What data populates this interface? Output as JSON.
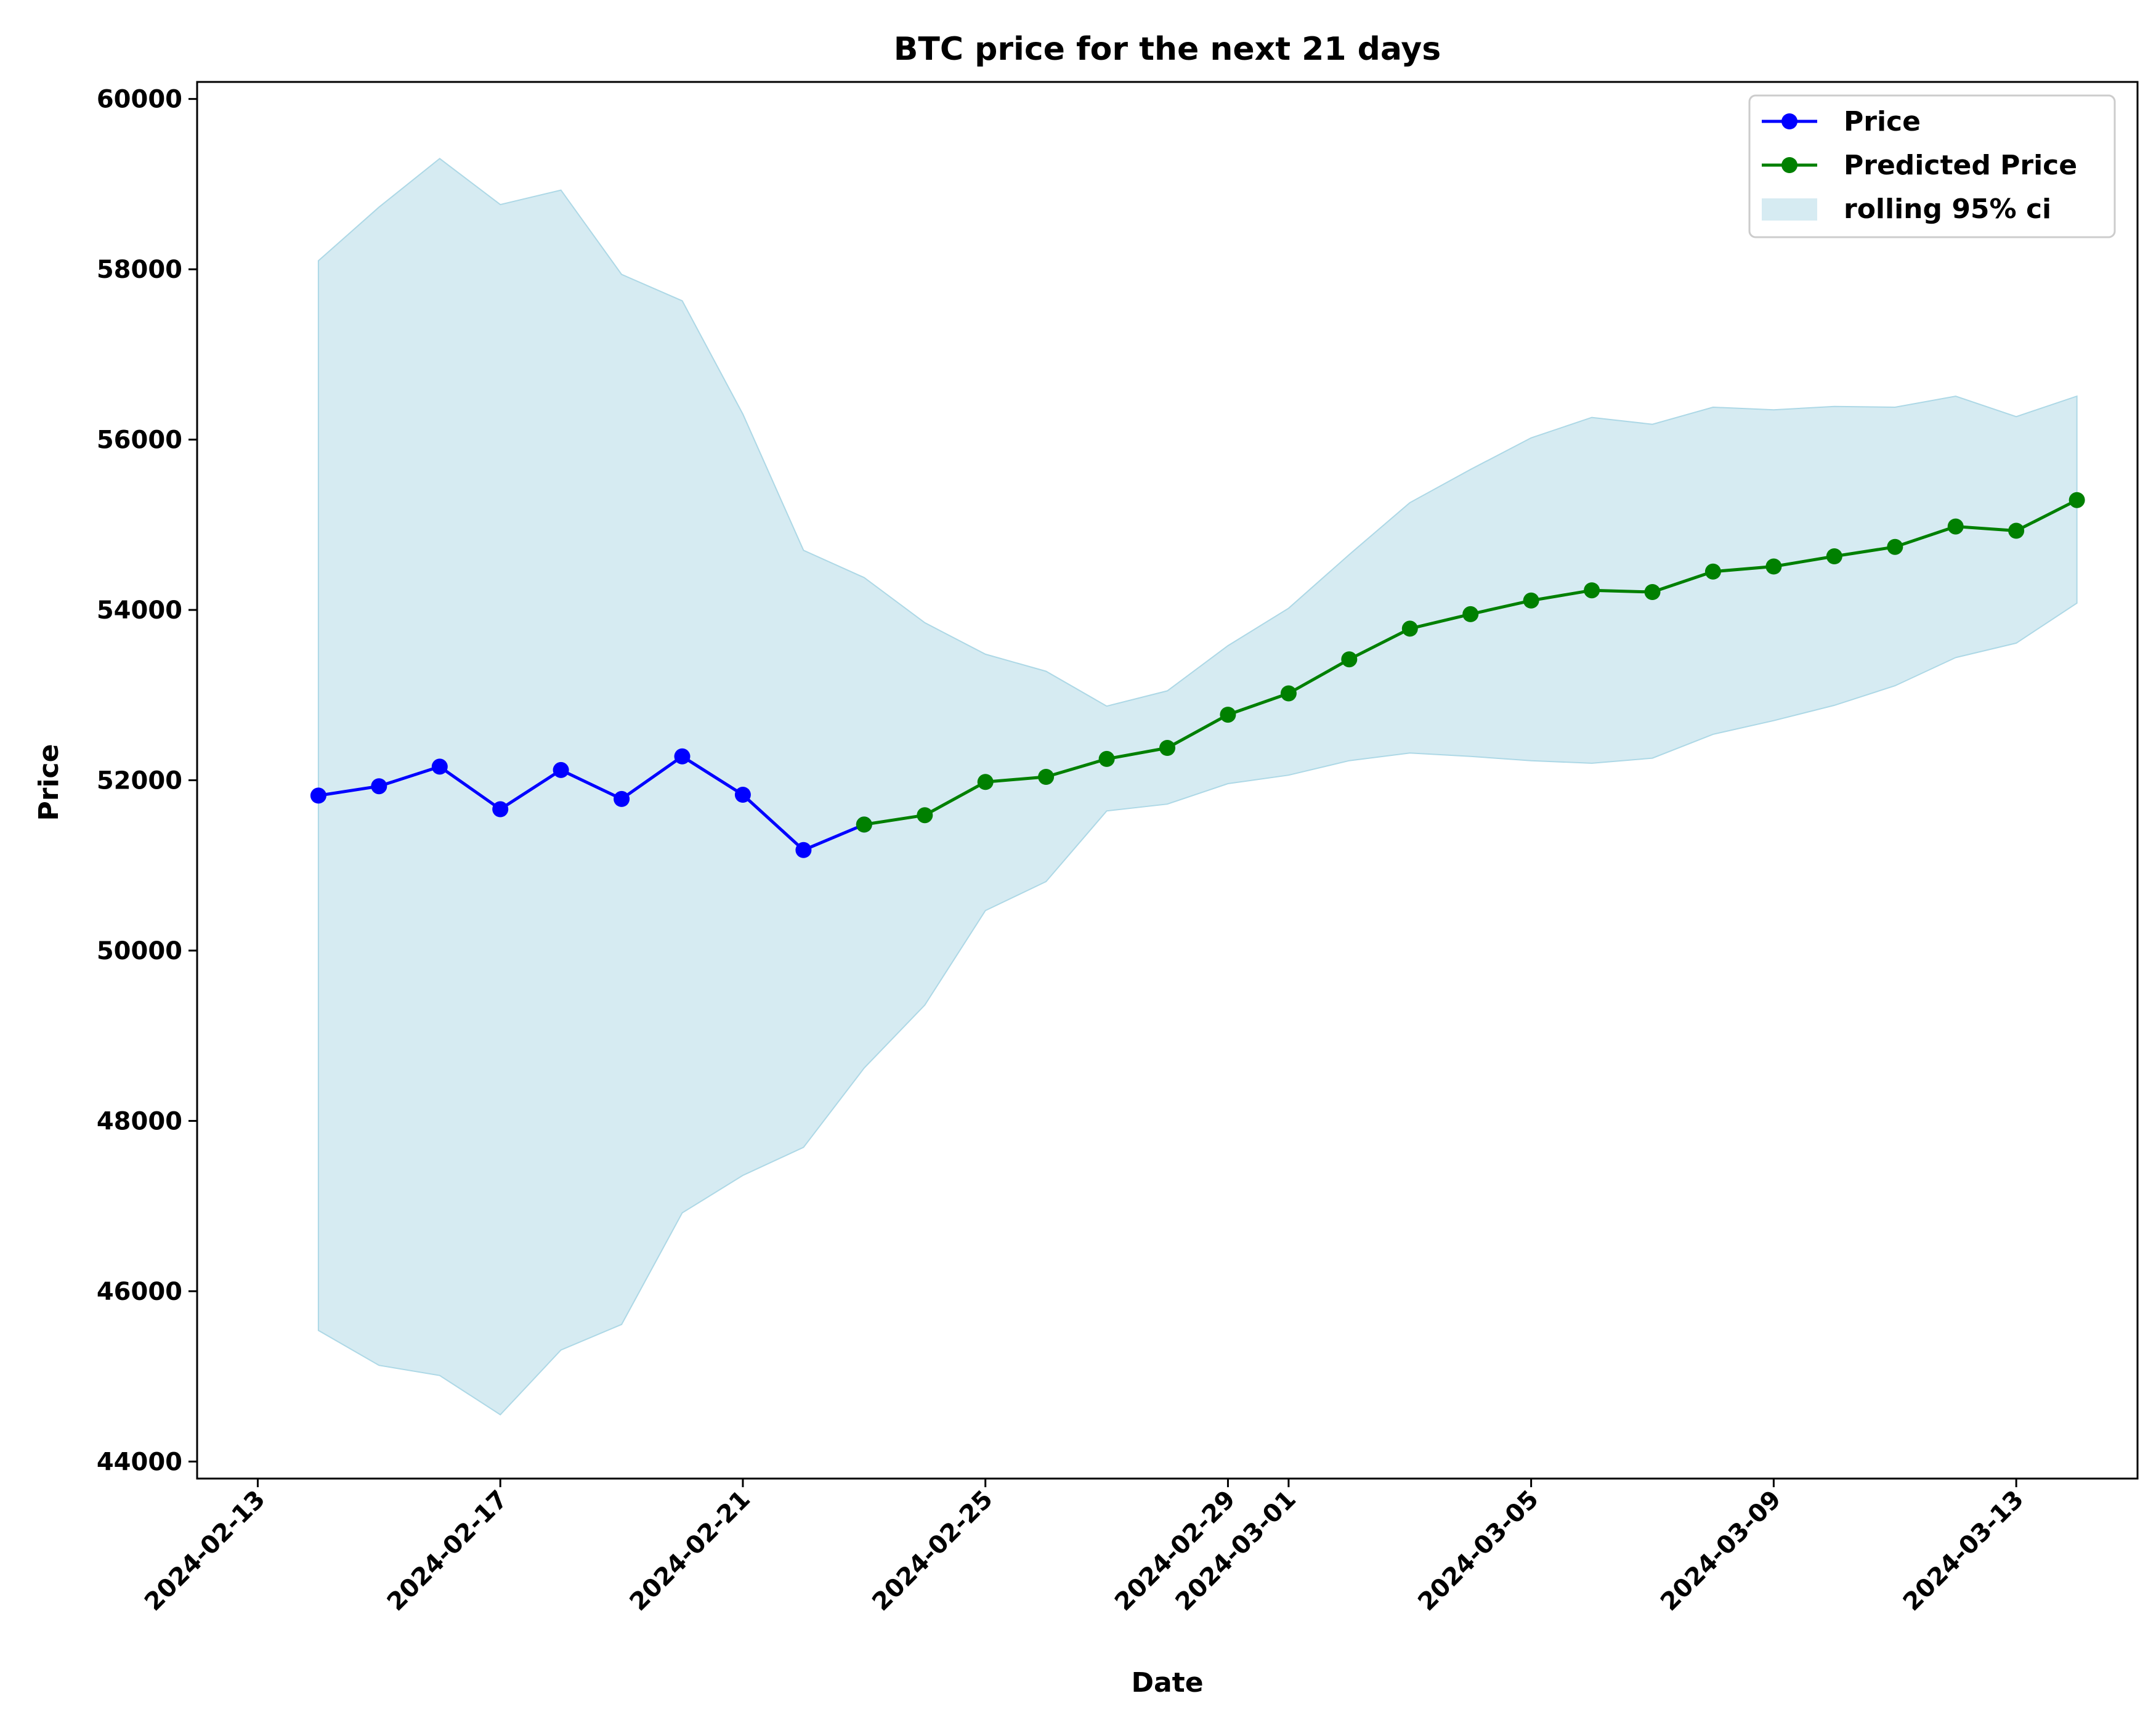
{
  "chart_data": {
    "type": "line",
    "title": "BTC price for the next 21 days",
    "xlabel": "Date",
    "ylabel": "Price",
    "ylim": [
      43800,
      60200
    ],
    "xlim": [
      "2024-02-12",
      "2024-03-15"
    ],
    "grid": false,
    "legend_position": "top-right",
    "y_ticks": [
      44000,
      46000,
      48000,
      50000,
      52000,
      54000,
      56000,
      58000,
      60000
    ],
    "x_ticks": [
      "2024-02-13",
      "2024-02-17",
      "2024-02-21",
      "2024-02-25",
      "2024-02-29",
      "2024-03-01",
      "2024-03-05",
      "2024-03-09",
      "2024-03-13"
    ],
    "legend": [
      "Price",
      "Predicted Price",
      "rolling 95% ci"
    ],
    "colors": {
      "price": "#0000ff",
      "predicted": "#008000",
      "ci_fill": "#add8e6"
    },
    "series": [
      {
        "name": "Price",
        "x": [
          "2024-02-14",
          "2024-02-15",
          "2024-02-16",
          "2024-02-17",
          "2024-02-18",
          "2024-02-19",
          "2024-02-20",
          "2024-02-21",
          "2024-02-22",
          "2024-02-23"
        ],
        "values": [
          51820,
          51930,
          52160,
          51660,
          52120,
          51780,
          52280,
          51830,
          51180,
          51480
        ]
      },
      {
        "name": "Predicted Price",
        "x": [
          "2024-02-23",
          "2024-02-24",
          "2024-02-25",
          "2024-02-26",
          "2024-02-27",
          "2024-02-28",
          "2024-02-29",
          "2024-03-01",
          "2024-03-02",
          "2024-03-03",
          "2024-03-04",
          "2024-03-05",
          "2024-03-06",
          "2024-03-07",
          "2024-03-08",
          "2024-03-09",
          "2024-03-10",
          "2024-03-11",
          "2024-03-12",
          "2024-03-13",
          "2024-03-14"
        ],
        "values": [
          51480,
          51590,
          51980,
          52040,
          52250,
          52380,
          52770,
          53020,
          53420,
          53780,
          53950,
          54110,
          54230,
          54210,
          54450,
          54510,
          54630,
          54740,
          54980,
          54930,
          55290
        ]
      }
    ],
    "ci_band": {
      "name": "rolling 95% ci",
      "x": [
        "2024-02-14",
        "2024-02-15",
        "2024-02-16",
        "2024-02-17",
        "2024-02-18",
        "2024-02-19",
        "2024-02-20",
        "2024-02-21",
        "2024-02-22",
        "2024-02-23",
        "2024-02-24",
        "2024-02-25",
        "2024-02-26",
        "2024-02-27",
        "2024-02-28",
        "2024-02-29",
        "2024-03-01",
        "2024-03-02",
        "2024-03-03",
        "2024-03-04",
        "2024-03-05",
        "2024-03-06",
        "2024-03-07",
        "2024-03-08",
        "2024-03-09",
        "2024-03-10",
        "2024-03-11",
        "2024-03-12",
        "2024-03-13",
        "2024-03-14"
      ],
      "upper": [
        58100,
        58730,
        59300,
        58760,
        58930,
        57940,
        57630,
        56300,
        54700,
        54380,
        53850,
        53480,
        53280,
        52870,
        53050,
        53580,
        54020,
        54650,
        55260,
        55650,
        56020,
        56260,
        56180,
        56380,
        56350,
        56390,
        56380,
        56510,
        56270,
        56510
      ],
      "lower": [
        45540,
        45130,
        45010,
        44550,
        45310,
        45610,
        46920,
        47360,
        47690,
        48620,
        49360,
        50470,
        50810,
        51640,
        51720,
        51960,
        52060,
        52230,
        52320,
        52280,
        52230,
        52200,
        52260,
        52540,
        52700,
        52880,
        53110,
        53440,
        53610,
        54080
      ]
    }
  }
}
